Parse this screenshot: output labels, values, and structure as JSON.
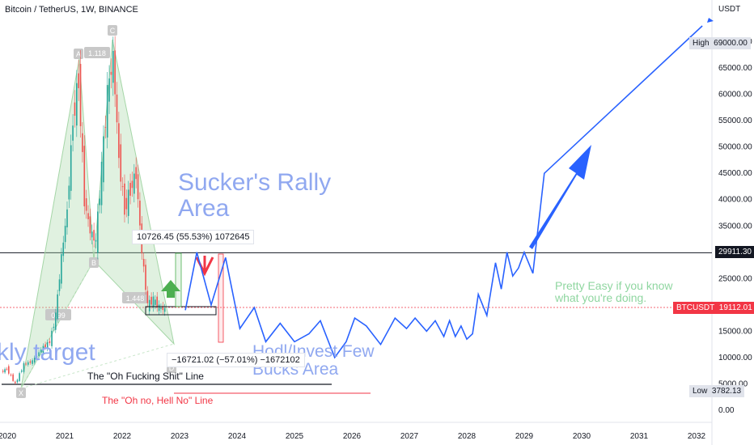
{
  "header": {
    "title": "Bitcoin / TetherUS, 1W, BINANCE"
  },
  "colors": {
    "bull": "#26a69a",
    "bear": "#ef5350",
    "projection": "#2962ff",
    "pattern": "#a5d6a7",
    "arrow_green": "#4caf50",
    "arrow_red": "#f23645"
  },
  "chart_data": {
    "type": "line",
    "title": "Bitcoin / TetherUS, 1W, BINANCE",
    "ylabel": "USDT",
    "ylim": [
      0,
      75000
    ],
    "x_ticks": [
      "2020",
      "2021",
      "2022",
      "2023",
      "2024",
      "2025",
      "2026",
      "2027",
      "2028",
      "2029",
      "2030",
      "2031",
      "2032"
    ],
    "y_ticks": [
      "0.00",
      "5000.00",
      "10000.00",
      "15000.00",
      "20000.00",
      "25000.00",
      "30000.00",
      "35000.00",
      "40000.00",
      "45000.00",
      "50000.00",
      "55000.00",
      "60000.00",
      "65000.00",
      "69000.00",
      "70000.00"
    ],
    "price_history": {
      "name": "BTCUSDT",
      "x": [
        2019.9,
        2020.0,
        2020.15,
        2020.3,
        2020.45,
        2020.6,
        2020.75,
        2020.85,
        2020.95,
        2021.05,
        2021.15,
        2021.25,
        2021.35,
        2021.45,
        2021.55,
        2021.65,
        2021.75,
        2021.85,
        2021.95,
        2022.05,
        2022.15,
        2022.25,
        2022.35,
        2022.45,
        2022.55,
        2022.65,
        2022.75
      ],
      "y": [
        7200,
        7900,
        5000,
        8700,
        9300,
        11500,
        13000,
        18000,
        29000,
        38000,
        55000,
        63000,
        40000,
        34000,
        32000,
        46000,
        60000,
        67000,
        48000,
        38000,
        42000,
        45000,
        30000,
        20000,
        21000,
        19500,
        19112
      ]
    },
    "projection": {
      "name": "",
      "x": [
        2023.1,
        2023.3,
        2023.55,
        2023.8,
        2024.05,
        2024.3,
        2024.5,
        2024.75,
        2025.0,
        2025.25,
        2025.45,
        2025.7,
        2025.9,
        2026.05,
        2026.25,
        2026.5,
        2026.75,
        2026.95,
        2027.1,
        2027.3,
        2027.45,
        2027.6,
        2027.7,
        2027.8,
        2027.9,
        2028.0,
        2028.1,
        2028.2,
        2028.35,
        2028.5,
        2028.6,
        2028.7,
        2028.8,
        2028.9,
        2029.0,
        2029.15,
        2029.35,
        2032.1
      ],
      "y": [
        19000,
        30000,
        20000,
        29000,
        15500,
        19500,
        13000,
        16500,
        13000,
        14500,
        17000,
        10000,
        13000,
        17500,
        16000,
        12500,
        17500,
        15500,
        17500,
        15000,
        17000,
        14000,
        17000,
        14000,
        16000,
        13500,
        14500,
        22000,
        18000,
        28000,
        23000,
        30000,
        25500,
        27000,
        30000,
        26000,
        45000,
        73000
      ]
    },
    "levels": [
      {
        "label": "29911.30",
        "value": 29911.3,
        "color": "#131722"
      },
      {
        "label": "The \"Oh Fucking Shit\" Line",
        "value": 4800,
        "color": "#131722"
      },
      {
        "label": "The \"Oh no, Hell No\" Line",
        "value": 3100,
        "color": "#f23645"
      }
    ],
    "price_labels": [
      {
        "label": "High",
        "value": "69000.00"
      },
      {
        "label": "BTCUSDT",
        "value": "19112.01"
      },
      {
        "label": "Low",
        "value": "3782.13"
      }
    ],
    "harmonic_points": [
      "X",
      "A",
      "B",
      "C",
      "D"
    ],
    "harmonic_ratios": [
      "1.118",
      "0.99",
      "1.448"
    ],
    "measurements": [
      {
        "label": "10726.45 (55.53%) 1072645"
      },
      {
        "label": "−16721.02 (−57.01%) −1672102"
      }
    ],
    "annotations": [
      "Sucker's Rally\nArea",
      "Hodl/Invest Few\nBucks Area",
      "Pretty Easy if you know\nwhat you're doing.",
      "kly target"
    ]
  }
}
